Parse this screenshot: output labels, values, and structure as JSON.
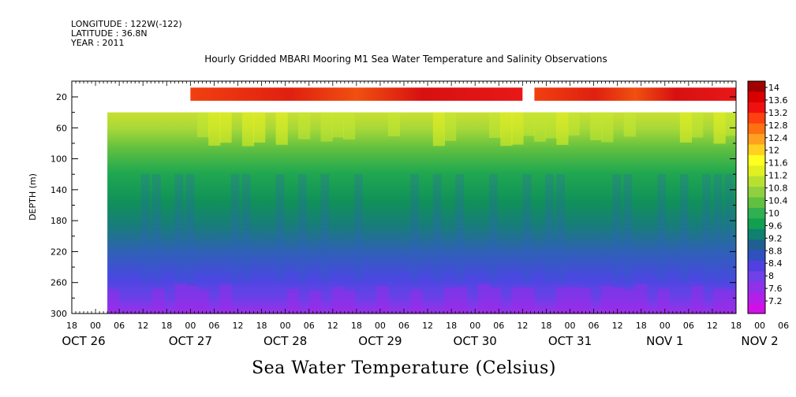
{
  "header": {
    "longitude": "LONGITUDE : 122W(-122)",
    "latitude": "LATITUDE : 36.8N",
    "year": "YEAR : 2011"
  },
  "chart_data": {
    "type": "heatmap",
    "title": "Hourly Gridded MBARI Mooring M1 Sea Water Temperature and Salinity Observations",
    "xlabel": "Sea Water Temperature (Celsius)",
    "ylabel": "DEPTH (m)",
    "ylim": [
      300,
      20
    ],
    "y_ticks": [
      20,
      60,
      100,
      140,
      180,
      220,
      260,
      300
    ],
    "x_hour_ticks": [
      "18",
      "00",
      "06",
      "12",
      "18",
      "00",
      "06",
      "12",
      "18",
      "00",
      "06",
      "12",
      "18",
      "00",
      "06",
      "12",
      "18",
      "00",
      "06",
      "12",
      "18",
      "00",
      "06",
      "12",
      "18",
      "00",
      "06",
      "12",
      "18",
      "00",
      "06",
      "12",
      "18"
    ],
    "x_date_labels": [
      {
        "label": "OCT 26"
      },
      {
        "label": "OCT 27"
      },
      {
        "label": "OCT 28"
      },
      {
        "label": "OCT 29"
      },
      {
        "label": "OCT 30"
      },
      {
        "label": "OCT 31"
      },
      {
        "label": "NOV  1"
      },
      {
        "label": "NOV  2"
      }
    ],
    "colorbar_levels": [
      "14",
      "13.6",
      "13.2",
      "12.8",
      "12.4",
      "12",
      "11.6",
      "11.2",
      "10.8",
      "10.4",
      "10",
      "9.6",
      "9.2",
      "8.8",
      "8.4",
      "8",
      "7.6",
      "7.2"
    ],
    "colorbar_colors": [
      "#a00000",
      "#d80000",
      "#f01010",
      "#ff4010",
      "#ff7010",
      "#ffa020",
      "#ffd020",
      "#ffff20",
      "#e0f020",
      "#b8e030",
      "#90d040",
      "#60c040",
      "#30b050",
      "#10a050",
      "#108070",
      "#206090",
      "#3050c0",
      "#5040e0",
      "#7040e8",
      "#9030e8",
      "#b020e8",
      "#d010e8"
    ],
    "x_range": [
      "OCT 26 18:00",
      "NOV 2 18:00"
    ],
    "data_start": "OCT 27 03:00",
    "surface_data_start": "OCT 28 00:00",
    "surface_gap": [
      "OCT 31 12:00",
      "OCT 31 15:00"
    ],
    "temperature_profile": [
      {
        "depth": 20,
        "value": 13.4
      },
      {
        "depth": 40,
        "value": 11.0
      },
      {
        "depth": 60,
        "value": 10.6
      },
      {
        "depth": 80,
        "value": 10.2
      },
      {
        "depth": 100,
        "value": 9.7
      },
      {
        "depth": 140,
        "value": 9.4
      },
      {
        "depth": 180,
        "value": 9.0
      },
      {
        "depth": 220,
        "value": 8.6
      },
      {
        "depth": 260,
        "value": 8.1
      },
      {
        "depth": 300,
        "value": 7.7
      }
    ]
  }
}
